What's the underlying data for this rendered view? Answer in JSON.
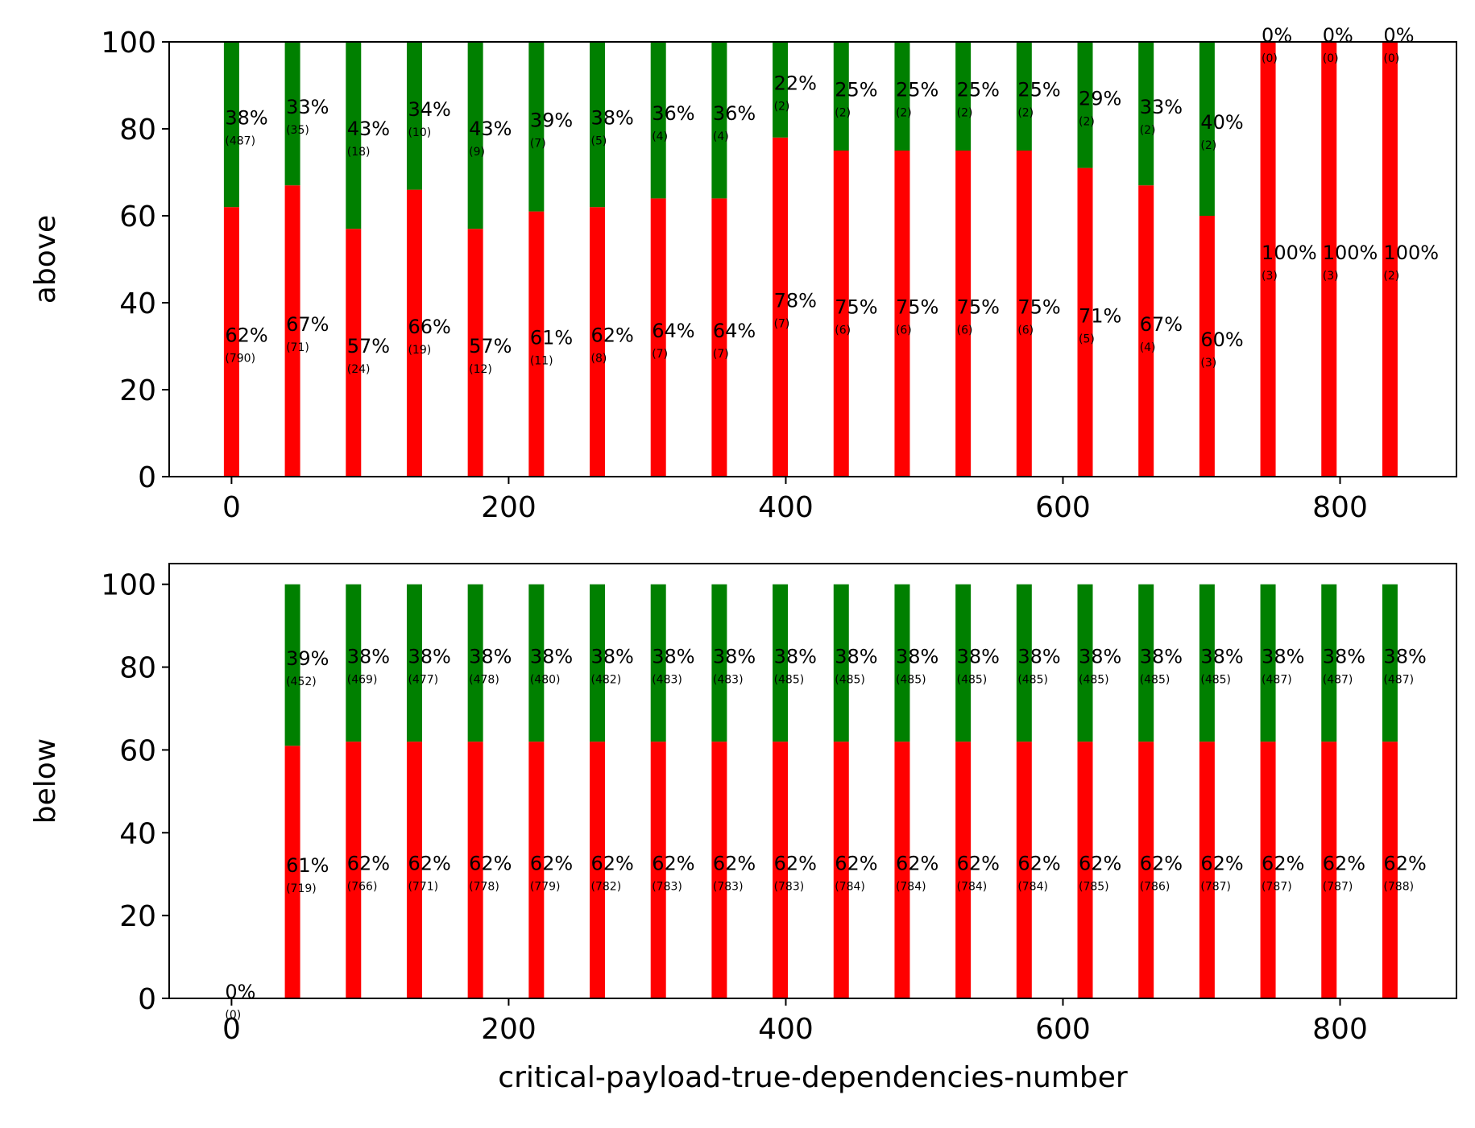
{
  "chart_data": [
    {
      "type": "bar",
      "stacked": true,
      "percent": true,
      "ylabel": "above",
      "xlabel": "",
      "xlim": [
        -45,
        884
      ],
      "ylim": [
        0,
        100
      ],
      "xticks": [
        0,
        200,
        400,
        600,
        800
      ],
      "yticks": [
        0,
        20,
        40,
        60,
        80,
        100
      ],
      "x": [
        0,
        44,
        88,
        132,
        176,
        220,
        264,
        308,
        352,
        396,
        440,
        484,
        528,
        572,
        616,
        660,
        704,
        748,
        792,
        836
      ],
      "colors": {
        "bottom": "#ff0000",
        "top": "#008000"
      },
      "series": [
        {
          "position": "bottom",
          "values": [
            62,
            67,
            57,
            66,
            57,
            61,
            62,
            64,
            64,
            78,
            75,
            75,
            75,
            75,
            71,
            67,
            60,
            100,
            100,
            100
          ],
          "labels": [
            "62%",
            "67%",
            "57%",
            "66%",
            "57%",
            "61%",
            "62%",
            "64%",
            "64%",
            "78%",
            "75%",
            "75%",
            "75%",
            "75%",
            "71%",
            "67%",
            "60%",
            "100%",
            "100%",
            "100%"
          ],
          "counts": [
            "(790)",
            "(71)",
            "(24)",
            "(19)",
            "(12)",
            "(11)",
            "(8)",
            "(7)",
            "(7)",
            "(7)",
            "(6)",
            "(6)",
            "(6)",
            "(6)",
            "(5)",
            "(4)",
            "(3)",
            "(3)",
            "(3)",
            "(2)"
          ]
        },
        {
          "position": "top",
          "values": [
            38,
            33,
            43,
            34,
            43,
            39,
            38,
            36,
            36,
            22,
            25,
            25,
            25,
            25,
            29,
            33,
            40,
            0,
            0,
            0
          ],
          "labels": [
            "38%",
            "33%",
            "43%",
            "34%",
            "43%",
            "39%",
            "38%",
            "36%",
            "36%",
            "22%",
            "25%",
            "25%",
            "25%",
            "25%",
            "29%",
            "33%",
            "40%",
            "0%",
            "0%",
            "0%"
          ],
          "counts": [
            "(487)",
            "(35)",
            "(18)",
            "(10)",
            "(9)",
            "(7)",
            "(5)",
            "(4)",
            "(4)",
            "(2)",
            "(2)",
            "(2)",
            "(2)",
            "(2)",
            "(2)",
            "(2)",
            "(2)",
            "(0)",
            "(0)",
            "(0)"
          ]
        }
      ]
    },
    {
      "type": "bar",
      "stacked": true,
      "percent": true,
      "ylabel": "below",
      "xlabel": "critical-payload-true-dependencies-number",
      "xlim": [
        -45,
        884
      ],
      "ylim": [
        0,
        105
      ],
      "xticks": [
        0,
        200,
        400,
        600,
        800
      ],
      "yticks": [
        0,
        20,
        40,
        60,
        80,
        100
      ],
      "x": [
        0,
        44,
        88,
        132,
        176,
        220,
        264,
        308,
        352,
        396,
        440,
        484,
        528,
        572,
        616,
        660,
        704,
        748,
        792,
        836
      ],
      "colors": {
        "bottom": "#ff0000",
        "top": "#008000"
      },
      "series": [
        {
          "position": "bottom",
          "values": [
            0,
            61,
            62,
            62,
            62,
            62,
            62,
            62,
            62,
            62,
            62,
            62,
            62,
            62,
            62,
            62,
            62,
            62,
            62,
            62
          ],
          "labels": [
            "0%",
            "61%",
            "62%",
            "62%",
            "62%",
            "62%",
            "62%",
            "62%",
            "62%",
            "62%",
            "62%",
            "62%",
            "62%",
            "62%",
            "62%",
            "62%",
            "62%",
            "62%",
            "62%",
            "62%"
          ],
          "counts": [
            "(0)",
            "(719)",
            "(766)",
            "(771)",
            "(778)",
            "(779)",
            "(782)",
            "(783)",
            "(783)",
            "(783)",
            "(784)",
            "(784)",
            "(784)",
            "(784)",
            "(785)",
            "(786)",
            "(787)",
            "(787)",
            "(787)",
            "(788)"
          ]
        },
        {
          "position": "top",
          "values": [
            0,
            39,
            38,
            38,
            38,
            38,
            38,
            38,
            38,
            38,
            38,
            38,
            38,
            38,
            38,
            38,
            38,
            38,
            38,
            38
          ],
          "labels": [
            "",
            "39%",
            "38%",
            "38%",
            "38%",
            "38%",
            "38%",
            "38%",
            "38%",
            "38%",
            "38%",
            "38%",
            "38%",
            "38%",
            "38%",
            "38%",
            "38%",
            "38%",
            "38%",
            "38%"
          ],
          "counts": [
            "",
            "(452)",
            "(469)",
            "(477)",
            "(478)",
            "(480)",
            "(482)",
            "(483)",
            "(483)",
            "(485)",
            "(485)",
            "(485)",
            "(485)",
            "(485)",
            "(485)",
            "(485)",
            "(485)",
            "(487)",
            "(487)",
            "(487)"
          ]
        }
      ]
    }
  ]
}
